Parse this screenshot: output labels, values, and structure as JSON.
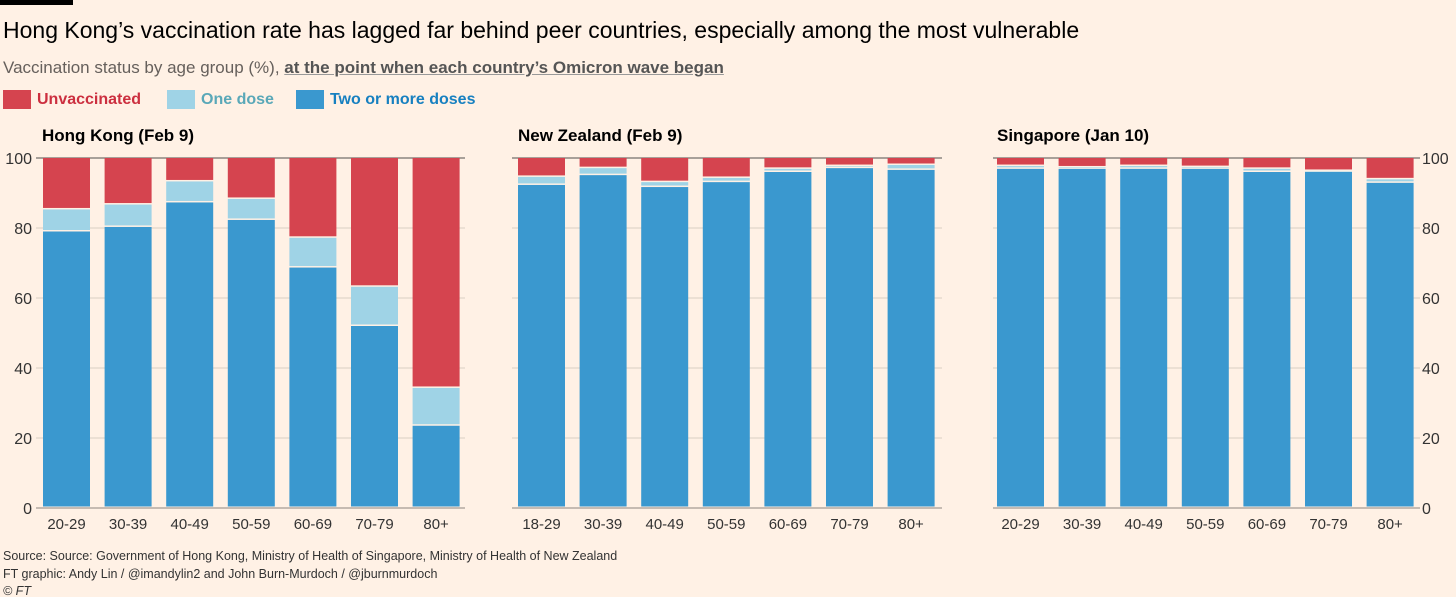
{
  "title": "Hong Kong’s vaccination rate has lagged far behind peer countries, especially among the most vulnerable",
  "subtitle_plain": "Vaccination status by age group (%), ",
  "subtitle_link": "at the point when each country’s Omicron wave began",
  "legend": [
    {
      "label": "Unvaccinated",
      "color": "#d5444f",
      "text_color": "#cc2f3f"
    },
    {
      "label": "One dose",
      "color": "#9fd3e6",
      "text_color": "#5aa8b8"
    },
    {
      "label": "Two or more doses",
      "color": "#3a98cf",
      "text_color": "#1780c0"
    }
  ],
  "footer": {
    "source": "Source: Source: Government of Hong Kong, Ministry of Health of Singapore, Ministry of Health of New Zealand",
    "credit": "FT graphic: Andy Lin / @imandylin2 and John Burn-Murdoch / @jburnmurdoch",
    "copyright": "© FT"
  },
  "chart_data": [
    {
      "type": "bar",
      "stacked": true,
      "title": "Hong Kong (Feb 9)",
      "ylim": [
        0,
        100
      ],
      "yticks": [
        "0",
        "20",
        "40",
        "60",
        "80",
        "100"
      ],
      "categories": [
        "20-29",
        "30-39",
        "40-49",
        "50-59",
        "60-69",
        "70-79",
        "80+"
      ],
      "series": [
        {
          "name": "Two or more doses",
          "values": [
            79,
            80.3,
            87.3,
            82.3,
            68.7,
            52,
            23.5
          ]
        },
        {
          "name": "One dose",
          "values": [
            6.3,
            6.4,
            6,
            6,
            8.5,
            11.2,
            10.8
          ]
        },
        {
          "name": "Unvaccinated",
          "values": [
            14.7,
            13.3,
            6.7,
            11.7,
            22.8,
            36.8,
            65.7
          ]
        }
      ]
    },
    {
      "type": "bar",
      "stacked": true,
      "title": "New Zealand (Feb 9)",
      "ylim": [
        0,
        100
      ],
      "categories": [
        "18-29",
        "30-39",
        "40-49",
        "50-59",
        "60-69",
        "70-79",
        "80+"
      ],
      "series": [
        {
          "name": "Two or more doses",
          "values": [
            92.3,
            95.1,
            91.7,
            93.1,
            96,
            97.1,
            96.6
          ]
        },
        {
          "name": "One dose",
          "values": [
            2.3,
            2,
            1.4,
            1.2,
            0.9,
            0.6,
            1.4
          ]
        },
        {
          "name": "Unvaccinated",
          "values": [
            5.4,
            2.9,
            6.9,
            5.7,
            3.1,
            2.3,
            2
          ]
        }
      ]
    },
    {
      "type": "bar",
      "stacked": true,
      "title": "Singapore (Jan 10)",
      "ylim": [
        0,
        100
      ],
      "yticks": [
        "0",
        "20",
        "40",
        "60",
        "80",
        "100"
      ],
      "categories": [
        "20-29",
        "30-39",
        "40-49",
        "50-59",
        "60-69",
        "70-79",
        "80+"
      ],
      "series": [
        {
          "name": "Two or more doses",
          "values": [
            96.9,
            96.9,
            96.9,
            96.9,
            96,
            96,
            92.9
          ]
        },
        {
          "name": "One dose",
          "values": [
            0.8,
            0.4,
            0.8,
            0.5,
            0.9,
            0.3,
            1
          ]
        },
        {
          "name": "Unvaccinated",
          "values": [
            2.3,
            2.7,
            2.3,
            2.6,
            3.1,
            3.7,
            6.1
          ]
        }
      ]
    }
  ]
}
